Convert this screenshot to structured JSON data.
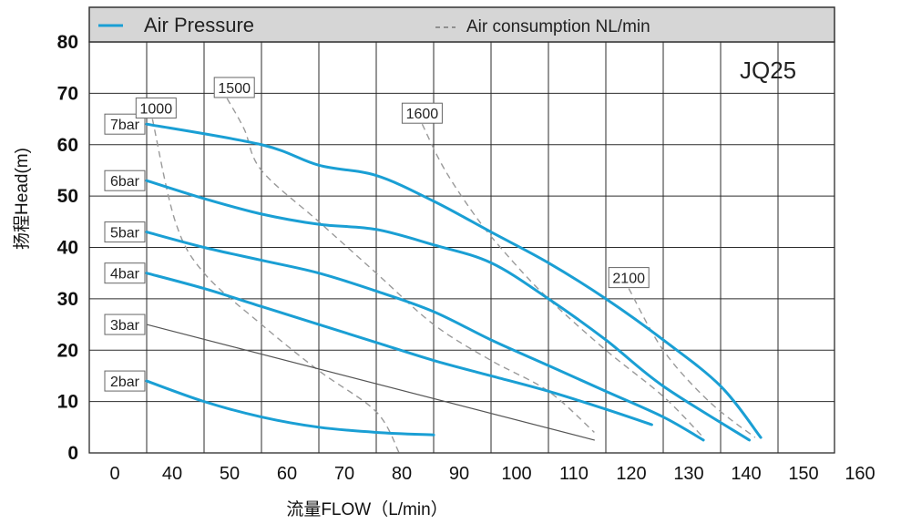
{
  "chart_data": {
    "type": "line",
    "model": "JQ25",
    "xlabel": "流量FLOW（L/min）",
    "ylabel": "扬程Head(m)",
    "xticks": [
      0,
      40,
      50,
      60,
      70,
      80,
      90,
      100,
      110,
      120,
      130,
      140,
      150,
      160
    ],
    "yticks": [
      0,
      10,
      20,
      30,
      40,
      50,
      60,
      70,
      80
    ],
    "xlim": [
      0,
      160
    ],
    "ylim": [
      0,
      80
    ],
    "x_axis_note": "first gridline labeled 0, then 40 through 160 in steps of 10",
    "grid": true,
    "legend": {
      "position": "top",
      "entries": [
        {
          "label": "Air Pressure",
          "style": "solid",
          "color": "#1a9fd4"
        },
        {
          "label": "Air consumption NL/min",
          "style": "dashed",
          "color": "#999999"
        }
      ]
    },
    "colors": {
      "pressure": "#1a9fd4",
      "thin_pressure": "#555555",
      "consumption": "#9a9a9a",
      "grid": "#2b2b2b",
      "header": "#d6d6d6"
    },
    "pressure_series": [
      {
        "name": "7bar",
        "color": "#1a9fd4",
        "points": [
          [
            40,
            64
          ],
          [
            60,
            60
          ],
          [
            70,
            56
          ],
          [
            80,
            54
          ],
          [
            90,
            49
          ],
          [
            100,
            43
          ],
          [
            110,
            37
          ],
          [
            120,
            30
          ],
          [
            130,
            22
          ],
          [
            140,
            13
          ],
          [
            147,
            3
          ]
        ]
      },
      {
        "name": "6bar",
        "color": "#1a9fd4",
        "points": [
          [
            40,
            53
          ],
          [
            50,
            49.5
          ],
          [
            60,
            46.5
          ],
          [
            70,
            44.5
          ],
          [
            80,
            43.5
          ],
          [
            90,
            40.5
          ],
          [
            100,
            37
          ],
          [
            110,
            30
          ],
          [
            120,
            22
          ],
          [
            130,
            13
          ],
          [
            145,
            2.5
          ]
        ]
      },
      {
        "name": "5bar",
        "color": "#1a9fd4",
        "points": [
          [
            40,
            43
          ],
          [
            50,
            40
          ],
          [
            60,
            37.5
          ],
          [
            70,
            35
          ],
          [
            80,
            31.5
          ],
          [
            90,
            27.5
          ],
          [
            100,
            22
          ],
          [
            110,
            17
          ],
          [
            120,
            12
          ],
          [
            130,
            7
          ],
          [
            137,
            2.5
          ]
        ]
      },
      {
        "name": "4bar",
        "color": "#1a9fd4",
        "points": [
          [
            40,
            35
          ],
          [
            50,
            32
          ],
          [
            60,
            28.5
          ],
          [
            70,
            25
          ],
          [
            80,
            21.5
          ],
          [
            90,
            18
          ],
          [
            100,
            15
          ],
          [
            110,
            12
          ],
          [
            120,
            8.5
          ],
          [
            128,
            5.5
          ]
        ]
      },
      {
        "name": "3bar",
        "color": "#555555",
        "points": [
          [
            40,
            25
          ],
          [
            118,
            2.5
          ]
        ]
      },
      {
        "name": "2bar",
        "color": "#1a9fd4",
        "points": [
          [
            40,
            14
          ],
          [
            50,
            10
          ],
          [
            60,
            7
          ],
          [
            70,
            5
          ],
          [
            80,
            4
          ],
          [
            90,
            3.5
          ]
        ]
      }
    ],
    "consumption_series": [
      {
        "name": "1000",
        "points": [
          [
            41,
            65
          ],
          [
            45,
            45
          ],
          [
            50,
            35
          ],
          [
            60,
            25
          ],
          [
            70,
            16
          ],
          [
            80,
            8
          ],
          [
            84,
            0
          ]
        ]
      },
      {
        "name": "1500",
        "points": [
          [
            54,
            69
          ],
          [
            57,
            63
          ],
          [
            60,
            55
          ],
          [
            70,
            45
          ],
          [
            80,
            35
          ],
          [
            90,
            25
          ],
          [
            100,
            18
          ],
          [
            110,
            12
          ],
          [
            118,
            4
          ]
        ]
      },
      {
        "name": "1600",
        "points": [
          [
            88,
            64
          ],
          [
            92,
            55
          ],
          [
            98,
            45
          ],
          [
            104,
            37
          ],
          [
            110,
            30
          ],
          [
            120,
            20
          ],
          [
            130,
            11
          ],
          [
            137,
            3
          ]
        ]
      },
      {
        "name": "2100",
        "points": [
          [
            124,
            32
          ],
          [
            130,
            20
          ],
          [
            138,
            10
          ],
          [
            146,
            3
          ]
        ]
      }
    ],
    "consumption_labels": [
      {
        "text": "1000"
      },
      {
        "text": "1500"
      },
      {
        "text": "1600"
      },
      {
        "text": "2100"
      }
    ]
  }
}
